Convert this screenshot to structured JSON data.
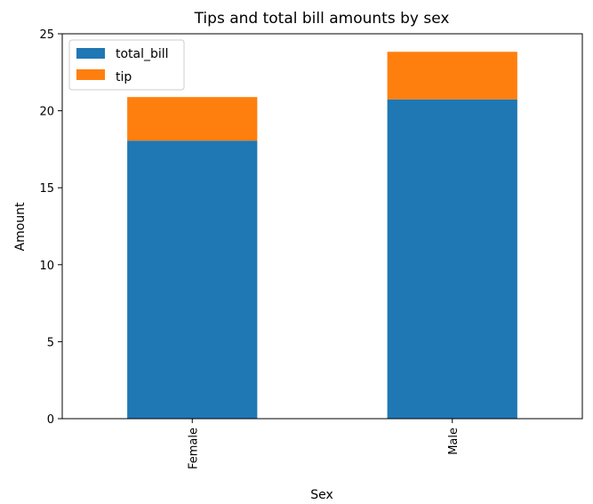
{
  "chart_data": {
    "type": "bar",
    "stacked": true,
    "title": "Tips and total bill amounts by sex",
    "xlabel": "Sex",
    "ylabel": "Amount",
    "categories": [
      "Female",
      "Male"
    ],
    "series": [
      {
        "name": "total_bill",
        "values": [
          18.06,
          20.74
        ],
        "color": "#1f77b4"
      },
      {
        "name": "tip",
        "values": [
          2.83,
          3.09
        ],
        "color": "#ff7f0e"
      }
    ],
    "ylim": [
      0,
      25
    ],
    "yticks": [
      0,
      5,
      10,
      15,
      20,
      25
    ],
    "grid": false,
    "legend_position": "upper-left"
  }
}
